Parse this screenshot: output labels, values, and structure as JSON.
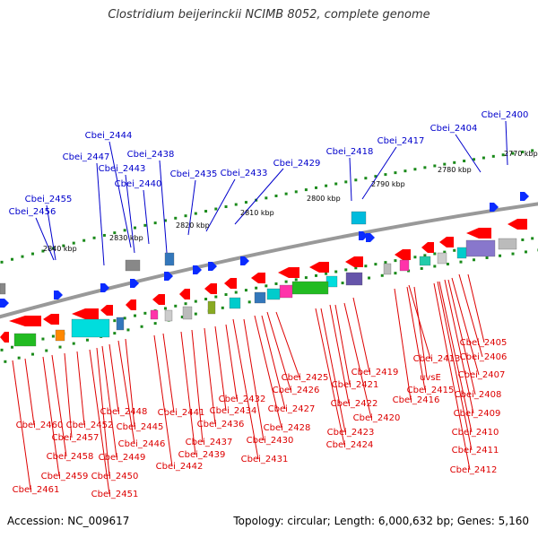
{
  "title": "Clostridium beijerinckii NCIMB 8052, complete genome",
  "footer": {
    "accession": "Accession: NC_009617",
    "summary": "Topology: circular; Length: 6,000,632 bp; Genes: 5,160"
  },
  "colors": {
    "top_labels": "#0000cc",
    "bottom_labels": "#dd0000",
    "backbone": "#999999",
    "scale_tick": "#1a8a1a",
    "forward_gene": "#0a2bff",
    "reverse_gene": "#ff0000"
  },
  "scale_labels": [
    "2770 kbp",
    "2780 kbp",
    "2790 kbp",
    "2800 kbp",
    "2810 kbp",
    "2820 kbp",
    "2830 kbp",
    "2840 kbp"
  ],
  "top_gene_labels": [
    "Cbei_2400",
    "Cbei_2404",
    "Cbei_2417",
    "Cbei_2418",
    "Cbei_2429",
    "Cbei_2433",
    "Cbei_2435",
    "Cbei_2438",
    "Cbei_2440",
    "Cbei_2443",
    "Cbei_2444",
    "Cbei_2447",
    "Cbei_2455",
    "Cbei_2456"
  ],
  "bottom_gene_labels": [
    "Cbei_2405",
    "Cbei_2406",
    "Cbei_2407",
    "Cbei_2408",
    "Cbei_2409",
    "Cbei_2410",
    "Cbei_2411",
    "Cbei_2412",
    "Cbei_2413",
    "uvsE",
    "Cbei_2415",
    "Cbei_2416",
    "Cbei_2419",
    "Cbei_2420",
    "Cbei_2421",
    "Cbei_2422",
    "Cbei_2423",
    "Cbei_2424",
    "Cbei_2425",
    "Cbei_2426",
    "Cbei_2427",
    "Cbei_2428",
    "Cbei_2430",
    "Cbei_2431",
    "Cbei_2432",
    "Cbei_2434",
    "Cbei_2436",
    "Cbei_2437",
    "Cbei_2439",
    "Cbei_2441",
    "Cbei_2442",
    "Cbei_2445",
    "Cbei_2446",
    "Cbei_2448",
    "Cbei_2449",
    "Cbei_2450",
    "Cbei_2451",
    "Cbei_2452",
    "Cbei_2457",
    "Cbei_2458",
    "Cbei_2459",
    "Cbei_2460",
    "Cbei_2461"
  ]
}
